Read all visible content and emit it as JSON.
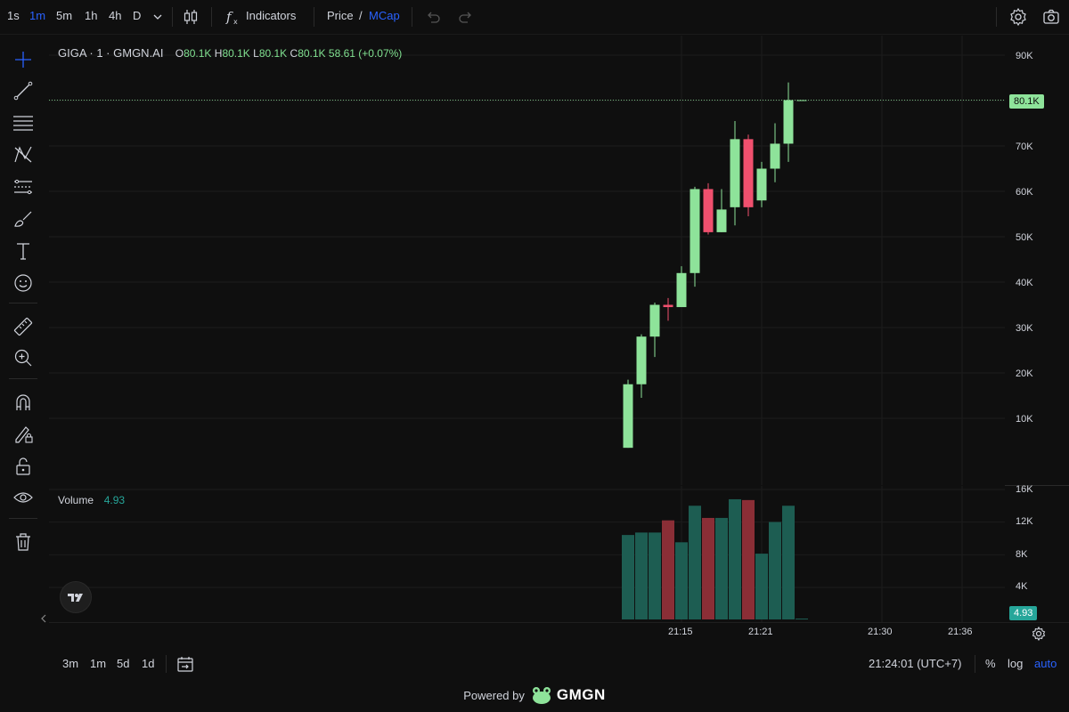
{
  "toolbar": {
    "intervals": [
      "1s",
      "1m",
      "5m",
      "1h",
      "4h",
      "D"
    ],
    "active_interval": "1m",
    "indicators_label": "Indicators",
    "price_label": "Price",
    "separator": "/",
    "mcap_label": "MCap"
  },
  "legend": {
    "symbol": "GIGA · 1 · GMGN.AI",
    "o_label": "O",
    "o_value": "80.1K",
    "h_label": "H",
    "h_value": "80.1K",
    "l_label": "L",
    "l_value": "80.1K",
    "c_label": "C",
    "c_value": "80.1K",
    "change": "58.61 (+0.07%)",
    "volume_label": "Volume",
    "volume_value": "4.93"
  },
  "price_axis": {
    "ticks": [
      "90K",
      "80K",
      "70K",
      "60K",
      "50K",
      "40K",
      "30K",
      "20K",
      "10K"
    ],
    "current_price_tag": "80.1K"
  },
  "volume_axis": {
    "ticks": [
      "16K",
      "12K",
      "8K",
      "4K"
    ],
    "current_volume_tag": "4.93"
  },
  "time_axis": {
    "ticks": [
      "21:15",
      "21:21",
      "21:30",
      "21:36"
    ]
  },
  "bottom": {
    "ranges": [
      "3m",
      "1m",
      "5d",
      "1d"
    ],
    "clock": "21:24:01 (UTC+7)",
    "percent_label": "%",
    "log_label": "log",
    "auto_label": "auto"
  },
  "footer": {
    "powered_by": "Powered by",
    "brand": "GMGN"
  },
  "colors": {
    "up": "#8ee39a",
    "down": "#f0506e",
    "vol_up": "#1d5d52",
    "vol_down": "#8a2e36",
    "accent": "#2962ff",
    "price_tag": "#8ee39a",
    "volume_tag": "#26a69a"
  },
  "chart_data": {
    "type": "candlestick",
    "x": [
      "21:11",
      "21:12",
      "21:13",
      "21:14",
      "21:15",
      "21:16",
      "21:17",
      "21:18",
      "21:19",
      "21:20",
      "21:21",
      "21:22",
      "21:23",
      "21:24"
    ],
    "ohlc": [
      [
        3500,
        18500,
        3500,
        17500
      ],
      [
        17500,
        28500,
        14500,
        28000
      ],
      [
        28000,
        35500,
        23500,
        35000
      ],
      [
        35000,
        36500,
        31500,
        34500
      ],
      [
        34500,
        43500,
        34500,
        42000
      ],
      [
        42000,
        61000,
        39000,
        60500
      ],
      [
        60500,
        61800,
        50500,
        51000
      ],
      [
        51000,
        60500,
        51000,
        56000
      ],
      [
        56500,
        75500,
        52500,
        71500
      ],
      [
        71500,
        72500,
        54500,
        56500
      ],
      [
        58000,
        66500,
        56500,
        65000
      ],
      [
        65000,
        75000,
        62000,
        70500
      ],
      [
        70500,
        84000,
        66500,
        80100
      ],
      [
        80100,
        80100,
        80100,
        80100
      ]
    ],
    "volume": [
      10400,
      10700,
      10700,
      12200,
      9500,
      14000,
      12500,
      12500,
      14800,
      14700,
      8100,
      12000,
      14000,
      4.93
    ],
    "volume_direction": [
      "up",
      "up",
      "up",
      "down",
      "up",
      "up",
      "down",
      "up",
      "up",
      "down",
      "up",
      "up",
      "up",
      "up"
    ],
    "price_ylim": [
      0,
      95000
    ],
    "volume_ylim": [
      0,
      17000
    ],
    "ylabel": "",
    "xlabel": ""
  }
}
